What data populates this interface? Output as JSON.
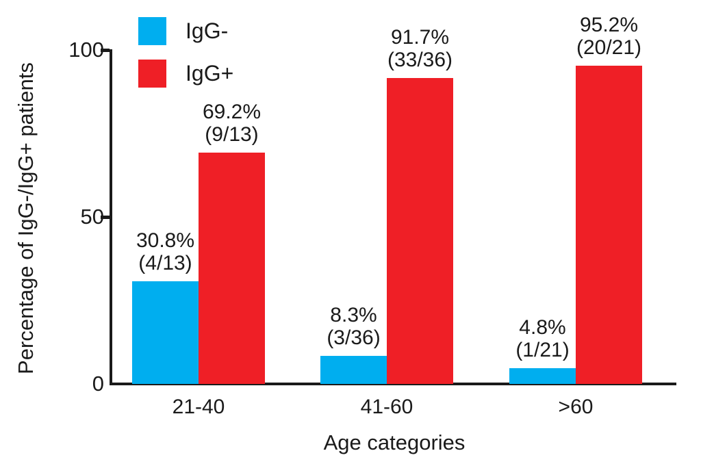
{
  "chart_data": {
    "type": "bar",
    "title": "",
    "xlabel": "Age categories",
    "ylabel": "Percentage of IgG-/IgG+ patients",
    "ylim": [
      0,
      100
    ],
    "yticks": [
      0,
      50,
      100
    ],
    "grid": false,
    "legend_position": "top-left-inside",
    "categories": [
      "21-40",
      "41-60",
      ">60"
    ],
    "series": [
      {
        "name": "IgG-",
        "color": "#00AEEF",
        "values": [
          30.8,
          8.3,
          4.8
        ],
        "labels": [
          "30.8%",
          "8.3%",
          "4.8%"
        ],
        "fractions": [
          "(4/13)",
          "(3/36)",
          "(1/21)"
        ]
      },
      {
        "name": "IgG+",
        "color": "#EF1F26",
        "values": [
          69.2,
          91.7,
          95.2
        ],
        "labels": [
          "69.2%",
          "91.7%",
          "95.2%"
        ],
        "fractions": [
          "(9/13)",
          "(33/36)",
          "(20/21)"
        ]
      }
    ],
    "axis_color": "#1a1a1a"
  }
}
